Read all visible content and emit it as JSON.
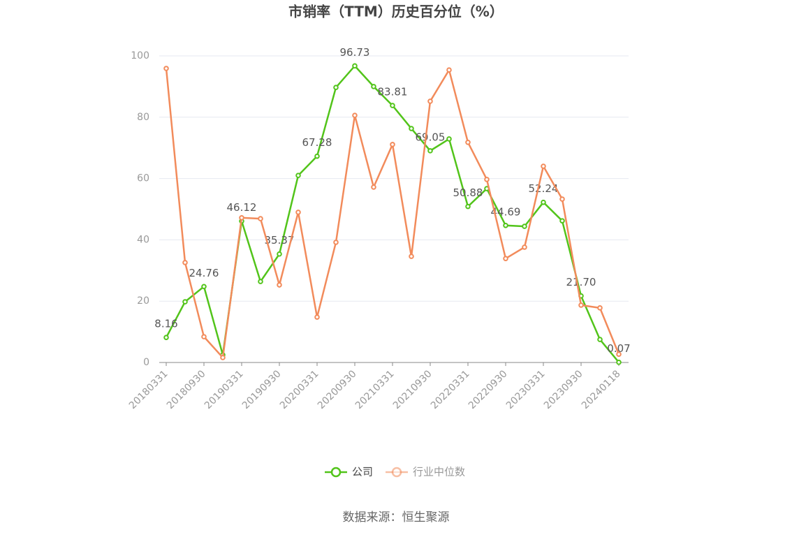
{
  "chart_data": {
    "type": "line",
    "title": "市销率（TTM）历史百分位（%）",
    "categories": [
      "20180331",
      null,
      "20180930",
      null,
      "20190331",
      null,
      "20190930",
      null,
      "20200331",
      null,
      "20200930",
      null,
      "20210331",
      null,
      "20210930",
      null,
      "20220331",
      null,
      "20220930",
      null,
      "20230331",
      null,
      "20230930",
      null,
      "20240118"
    ],
    "series": [
      {
        "name": "公司",
        "color": "#52c41a",
        "values": [
          8.16,
          19.8,
          24.76,
          2.5,
          46.12,
          26.4,
          35.37,
          61.0,
          67.28,
          89.7,
          96.73,
          90.0,
          83.81,
          76.3,
          69.05,
          72.9,
          50.88,
          56.7,
          44.69,
          44.4,
          52.24,
          46.2,
          21.7,
          7.5,
          0.07
        ],
        "value_labels": [
          "8.16",
          null,
          "24.76",
          null,
          "46.12",
          null,
          "35.37",
          null,
          "67.28",
          null,
          "96.73",
          null,
          "83.81",
          null,
          "69.05",
          null,
          "50.88",
          null,
          "44.69",
          null,
          "52.24",
          null,
          "21.70",
          null,
          "0.07"
        ]
      },
      {
        "name": "行业中位数",
        "color": "#f28b5b",
        "values": [
          95.9,
          32.6,
          8.4,
          1.6,
          47.2,
          46.9,
          25.3,
          49.0,
          14.8,
          39.2,
          80.6,
          57.2,
          71.1,
          34.6,
          85.2,
          95.4,
          71.8,
          59.7,
          33.9,
          37.6,
          64.0,
          53.3,
          18.7,
          17.8,
          2.7
        ]
      }
    ],
    "ylim": [
      0,
      100
    ],
    "yticks": [
      0,
      20,
      40,
      60,
      80,
      100
    ],
    "grid": true,
    "legend": "bottom",
    "note": "数据来源：恒生聚源"
  }
}
